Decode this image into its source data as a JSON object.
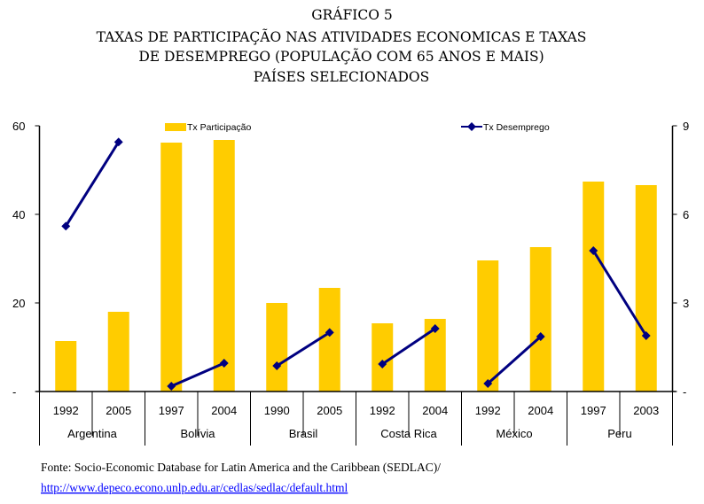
{
  "chart_data": {
    "type": "bar",
    "title": [
      "GRÁFICO 5",
      "TAXAS DE PARTICIPAÇÃO NAS ATIVIDADES ECONOMICAS E TAXAS",
      "DE DESEMPREGO (POPULAÇÃO COM 65 ANOS E MAIS)",
      "PAÍSES SELECIONADOS"
    ],
    "groups": [
      "Argentina",
      "Bolívia",
      "Brasil",
      "Costa Rica",
      "México",
      "Peru"
    ],
    "categories": [
      "1992",
      "2005",
      "1997",
      "2004",
      "1990",
      "2005",
      "1992",
      "2004",
      "1992",
      "2004",
      "1997",
      "2003"
    ],
    "series": [
      {
        "name": "Tx Participação",
        "type": "bar",
        "axis": "left",
        "color": "#FFCC00",
        "values": [
          11.4,
          18.0,
          56.2,
          56.8,
          20.0,
          23.4,
          15.4,
          16.4,
          29.6,
          32.6,
          47.4,
          46.6
        ]
      },
      {
        "name": "Tx Desemprego",
        "type": "line",
        "axis": "right",
        "color": "#000080",
        "values": [
          5.6,
          8.45,
          0.18,
          0.96,
          0.87,
          2.0,
          0.93,
          2.13,
          0.27,
          1.86,
          4.77,
          1.89
        ]
      }
    ],
    "left_axis": {
      "ylim": [
        0,
        60
      ],
      "ticks": [
        "-",
        "20",
        "40",
        "60"
      ]
    },
    "right_axis": {
      "ylim": [
        0,
        9
      ],
      "ticks": [
        "-",
        "3",
        "6",
        "9"
      ]
    },
    "legend_placement": "top",
    "grid": false
  },
  "source": {
    "text": "Fonte: Socio-Economic Database for Latin America and the Caribbean (SEDLAC)/",
    "link": "http://www.depeco.econo.unlp.edu.ar/cedlas/sedlac/default.html"
  }
}
